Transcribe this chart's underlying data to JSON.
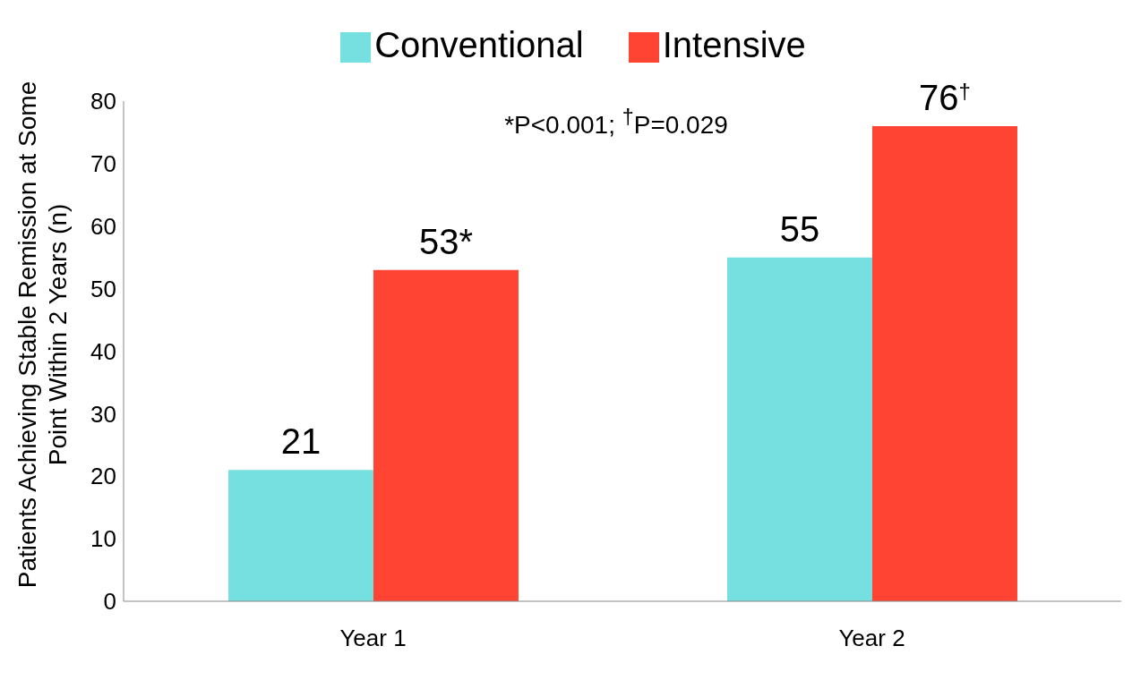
{
  "chart_data": {
    "type": "bar",
    "ylabel": "Patients Achieving Stable Remission at Some Point Within 2 Years  (n)",
    "categories": [
      "Year 1",
      "Year 2"
    ],
    "series": [
      {
        "name": "Conventional",
        "color": "#76dfdf",
        "values": [
          21,
          55
        ],
        "value_labels": [
          "21",
          "55"
        ]
      },
      {
        "name": "Intensive",
        "color": "#ff4433",
        "values": [
          53,
          76
        ],
        "value_labels": [
          "53*",
          "76$^{†}$"
        ]
      }
    ],
    "annotations": [
      "*P<0.001; $^{†}$P=0.029"
    ],
    "ylim": [
      0,
      80
    ],
    "yticks": [
      0,
      10,
      20,
      30,
      40,
      50,
      60,
      70,
      80
    ],
    "grid": false,
    "legend": "top"
  }
}
